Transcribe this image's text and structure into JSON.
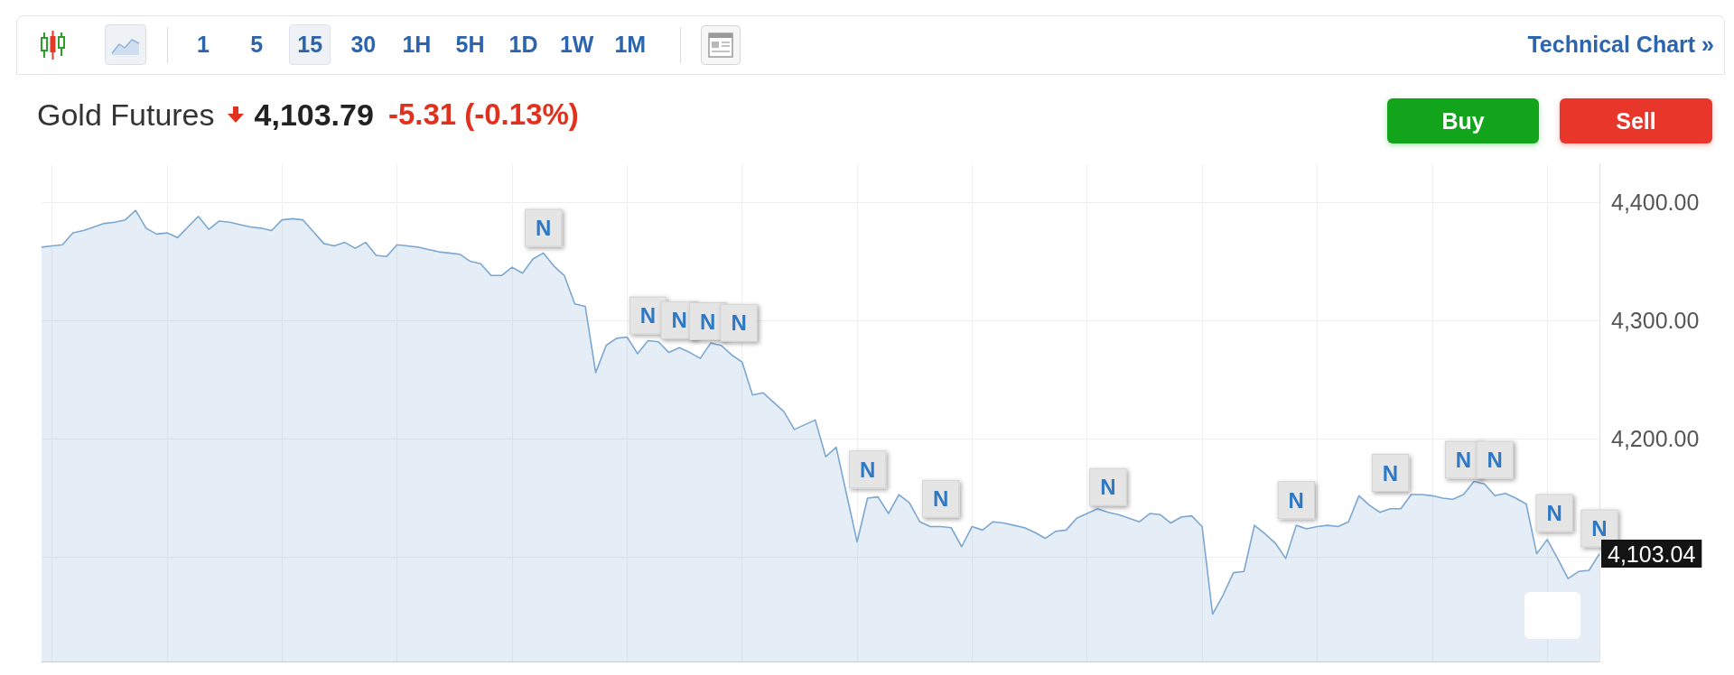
{
  "chart_data": {
    "type": "area",
    "title": "Gold Futures",
    "subtitle": "4,103.79",
    "annotations": [
      "-5.31 (-0.13%)",
      "1",
      "5",
      "15",
      "30",
      "1H",
      "5H",
      "1D",
      "1W",
      "1M",
      "Technical Chart »",
      "Buy",
      "Sell",
      "4,103.04"
    ],
    "categories": [
      null,
      null,
      null,
      null,
      null,
      null,
      null,
      null,
      null,
      null,
      null,
      null,
      null,
      null,
      null,
      null,
      null,
      null,
      null,
      null,
      null,
      null,
      null,
      null,
      null,
      null,
      null,
      null,
      null,
      null,
      null,
      null,
      null,
      null,
      null,
      null,
      null,
      null,
      null,
      null,
      null,
      null,
      null,
      null,
      null,
      null,
      null,
      null,
      null,
      null,
      null,
      null,
      null,
      null,
      null,
      null,
      null,
      null,
      null,
      null,
      null,
      null,
      null,
      null,
      null,
      null,
      null,
      null,
      null,
      null,
      null,
      null,
      null,
      null,
      null,
      null,
      null,
      null,
      null,
      null,
      null,
      null,
      null,
      null,
      null,
      null,
      null,
      null,
      null,
      null,
      null,
      null,
      null,
      null,
      null,
      null,
      null,
      null,
      null,
      null,
      null,
      null,
      null,
      null,
      null,
      null,
      null,
      null,
      null,
      null,
      null,
      null,
      null,
      null,
      null,
      null,
      null,
      null,
      null,
      null,
      null,
      null,
      null,
      null,
      null,
      null,
      null,
      null,
      null,
      null,
      null,
      null,
      null,
      null,
      null,
      null,
      null,
      null,
      null,
      null,
      null,
      null,
      null,
      null,
      null,
      null,
      null,
      null,
      null,
      null
    ],
    "values": [
      4362,
      4363,
      4364,
      4374,
      4376,
      4379,
      4382,
      4383,
      4385,
      4393,
      4378,
      4373,
      4374,
      4370,
      4379,
      4388,
      4377,
      4384,
      4383,
      4381,
      4379,
      4378,
      4376,
      4385,
      4386,
      4385,
      4375,
      4365,
      4363,
      4366,
      4361,
      4366,
      4355,
      4354,
      4364,
      4363,
      4362,
      4360,
      4358,
      4357,
      4356,
      4350,
      4348,
      4338,
      4338,
      4345,
      4340,
      4352,
      4357,
      4346,
      4338,
      4314,
      4312,
      4256,
      4279,
      4285,
      4286,
      4272,
      4283,
      4282,
      4273,
      4277,
      4273,
      4268,
      4281,
      4279,
      4271,
      4265,
      4237,
      4239,
      4231,
      4223,
      4208,
      4212,
      4216,
      4185,
      4193,
      4153,
      4113,
      4150,
      4151,
      4137,
      4153,
      4146,
      4130,
      4126,
      4126,
      4125,
      4109,
      4126,
      4123,
      4130,
      4129,
      4127,
      4125,
      4121,
      4116,
      4122,
      4123,
      4133,
      4137,
      4141,
      4138,
      4136,
      4133,
      4130,
      4137,
      4136,
      4129,
      4134,
      4135,
      4126,
      4052,
      4068,
      4087,
      4088,
      4127,
      4120,
      4112,
      4099,
      4127,
      4124,
      4126,
      4127,
      4126,
      4130,
      4152,
      4144,
      4138,
      4141,
      4141,
      4153,
      4153,
      4152,
      4150,
      4149,
      4153,
      4164,
      4162,
      4152,
      4154,
      4150,
      4145,
      4103,
      4115,
      4099,
      4082,
      4088,
      4089,
      4103
    ],
    "value_labels": [
      null,
      null,
      null,
      null,
      null,
      null,
      null,
      null,
      null,
      null,
      null,
      null,
      null,
      null,
      null,
      null,
      null,
      null,
      null,
      null,
      null,
      null,
      null,
      null,
      null,
      null,
      null,
      null,
      null,
      null,
      null,
      null,
      null,
      null,
      null,
      null,
      null,
      null,
      null,
      null,
      null,
      null,
      null,
      null,
      null,
      null,
      null,
      null,
      "N",
      null,
      null,
      null,
      null,
      null,
      null,
      null,
      null,
      null,
      "N",
      null,
      null,
      "N",
      "N",
      null,
      null,
      null,
      "N",
      null,
      null,
      null,
      null,
      null,
      null,
      null,
      null,
      null,
      null,
      null,
      null,
      "N",
      null,
      null,
      null,
      null,
      null,
      null,
      "N",
      null,
      null,
      null,
      null,
      null,
      null,
      null,
      null,
      null,
      null,
      null,
      null,
      null,
      null,
      null,
      "N",
      null,
      null,
      null,
      null,
      null,
      null,
      null,
      null,
      null,
      null,
      null,
      null,
      null,
      null,
      null,
      null,
      null,
      "N",
      null,
      null,
      null,
      null,
      null,
      null,
      null,
      null,
      "N",
      null,
      null,
      null,
      null,
      null,
      null,
      "N",
      null,
      null,
      "N",
      null,
      null,
      null,
      null,
      "N",
      null,
      null,
      null,
      null,
      "N"
    ],
    "color": "#7ba7d1",
    "ylim": [
      4012,
      4432
    ],
    "yticks": [
      {
        "value": 4400,
        "label": "4,400.00"
      },
      {
        "value": 4300,
        "label": "4,300.00"
      },
      {
        "value": 4200,
        "label": "4,200.00"
      },
      {
        "value": 4100,
        "label": null
      }
    ],
    "grid": true,
    "tick_labels": "y"
  }
}
